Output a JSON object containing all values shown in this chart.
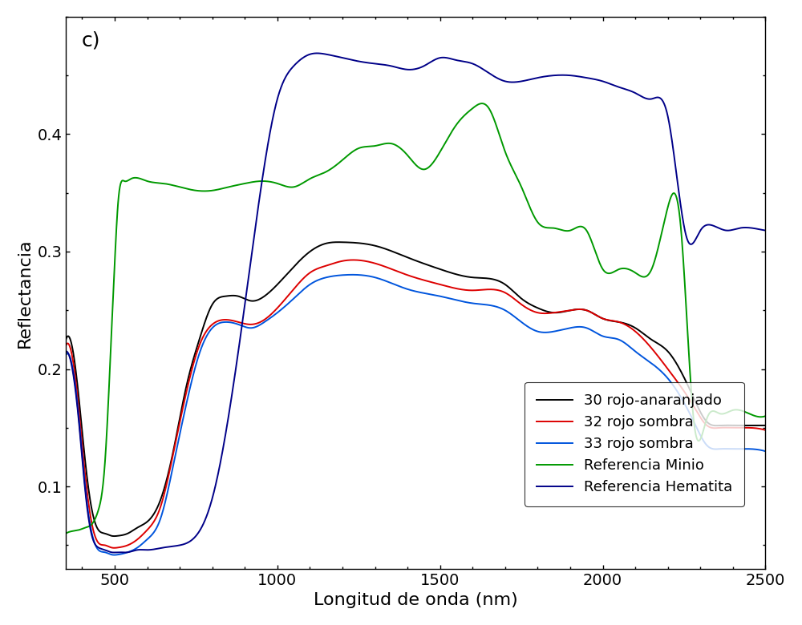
{
  "title": "c)",
  "xlabel": "Longitud de onda (nm)",
  "ylabel": "Reflectancia",
  "xlim": [
    350,
    2500
  ],
  "ylim": [
    0.03,
    0.5
  ],
  "legend_labels": [
    "30 rojo-anaranjado",
    "32 rojo sombra",
    "33 rojo sombra",
    "Referencia Minio",
    "Referencia Hematita"
  ],
  "colors": [
    "#000000",
    "#dd0000",
    "#0055dd",
    "#009900",
    "#000088"
  ],
  "linewidth": 1.4,
  "yticks": [
    0.1,
    0.2,
    0.3,
    0.4
  ],
  "xticks": [
    500,
    1000,
    1500,
    2000,
    2500
  ],
  "black_x": [
    350,
    370,
    390,
    410,
    430,
    450,
    470,
    490,
    510,
    540,
    570,
    600,
    640,
    680,
    720,
    760,
    800,
    840,
    880,
    920,
    960,
    1000,
    1050,
    1100,
    1150,
    1200,
    1300,
    1400,
    1500,
    1600,
    1700,
    1750,
    1800,
    1850,
    1900,
    1950,
    2000,
    2050,
    2100,
    2150,
    2200,
    2280,
    2320,
    2360,
    2400,
    2450,
    2500
  ],
  "black_y": [
    0.225,
    0.218,
    0.175,
    0.12,
    0.08,
    0.063,
    0.06,
    0.058,
    0.058,
    0.06,
    0.065,
    0.07,
    0.088,
    0.13,
    0.185,
    0.225,
    0.255,
    0.262,
    0.262,
    0.258,
    0.262,
    0.272,
    0.287,
    0.3,
    0.307,
    0.308,
    0.305,
    0.295,
    0.285,
    0.278,
    0.272,
    0.26,
    0.252,
    0.248,
    0.25,
    0.25,
    0.243,
    0.24,
    0.235,
    0.225,
    0.215,
    0.175,
    0.155,
    0.152,
    0.152,
    0.152,
    0.152
  ],
  "red_x": [
    350,
    370,
    390,
    410,
    430,
    450,
    470,
    490,
    510,
    540,
    570,
    600,
    640,
    680,
    720,
    760,
    800,
    840,
    880,
    920,
    960,
    1000,
    1050,
    1100,
    1150,
    1200,
    1300,
    1400,
    1500,
    1600,
    1700,
    1750,
    1800,
    1850,
    1900,
    1950,
    2000,
    2050,
    2100,
    2200,
    2280,
    2320,
    2360,
    2400,
    2450,
    2500
  ],
  "red_y": [
    0.22,
    0.21,
    0.165,
    0.108,
    0.068,
    0.052,
    0.05,
    0.048,
    0.048,
    0.05,
    0.055,
    0.063,
    0.082,
    0.128,
    0.18,
    0.22,
    0.238,
    0.242,
    0.24,
    0.238,
    0.242,
    0.252,
    0.268,
    0.282,
    0.288,
    0.292,
    0.29,
    0.28,
    0.272,
    0.267,
    0.265,
    0.255,
    0.248,
    0.248,
    0.25,
    0.25,
    0.243,
    0.24,
    0.232,
    0.2,
    0.168,
    0.152,
    0.15,
    0.15,
    0.15,
    0.148
  ],
  "blue_x": [
    350,
    370,
    390,
    410,
    430,
    450,
    470,
    490,
    510,
    540,
    570,
    600,
    640,
    680,
    720,
    760,
    800,
    840,
    880,
    920,
    960,
    1000,
    1050,
    1100,
    1150,
    1200,
    1300,
    1400,
    1500,
    1600,
    1700,
    1750,
    1800,
    1850,
    1900,
    1950,
    2000,
    2050,
    2100,
    2200,
    2280,
    2320,
    2360,
    2400,
    2450,
    2500
  ],
  "blue_y": [
    0.212,
    0.202,
    0.158,
    0.098,
    0.06,
    0.046,
    0.044,
    0.042,
    0.042,
    0.044,
    0.048,
    0.055,
    0.072,
    0.118,
    0.17,
    0.213,
    0.235,
    0.24,
    0.238,
    0.235,
    0.24,
    0.248,
    0.26,
    0.272,
    0.278,
    0.28,
    0.278,
    0.268,
    0.262,
    0.256,
    0.25,
    0.24,
    0.232,
    0.232,
    0.235,
    0.235,
    0.228,
    0.225,
    0.215,
    0.192,
    0.155,
    0.135,
    0.132,
    0.132,
    0.132,
    0.13
  ],
  "green_x": [
    350,
    370,
    390,
    410,
    430,
    450,
    470,
    490,
    500,
    510,
    530,
    550,
    600,
    650,
    700,
    750,
    800,
    850,
    900,
    950,
    1000,
    1050,
    1100,
    1150,
    1200,
    1250,
    1300,
    1350,
    1400,
    1450,
    1500,
    1550,
    1600,
    1650,
    1700,
    1750,
    1800,
    1850,
    1900,
    1950,
    2000,
    2050,
    2100,
    2150,
    2200,
    2240,
    2280,
    2320,
    2360,
    2400,
    2450,
    2500
  ],
  "green_y": [
    0.06,
    0.062,
    0.063,
    0.065,
    0.068,
    0.08,
    0.12,
    0.23,
    0.29,
    0.34,
    0.36,
    0.362,
    0.36,
    0.358,
    0.355,
    0.352,
    0.352,
    0.355,
    0.358,
    0.36,
    0.358,
    0.355,
    0.362,
    0.368,
    0.378,
    0.388,
    0.39,
    0.392,
    0.382,
    0.37,
    0.385,
    0.408,
    0.422,
    0.422,
    0.385,
    0.355,
    0.325,
    0.32,
    0.318,
    0.318,
    0.285,
    0.285,
    0.282,
    0.285,
    0.338,
    0.32,
    0.155,
    0.158,
    0.162,
    0.165,
    0.162,
    0.16
  ],
  "darkblue_x": [
    350,
    370,
    390,
    410,
    430,
    450,
    470,
    490,
    510,
    540,
    570,
    600,
    650,
    700,
    750,
    800,
    850,
    900,
    950,
    1000,
    1050,
    1100,
    1150,
    1200,
    1250,
    1300,
    1350,
    1400,
    1450,
    1500,
    1550,
    1600,
    1650,
    1700,
    1750,
    1800,
    1850,
    1900,
    1950,
    2000,
    2050,
    2100,
    2150,
    2200,
    2260,
    2300,
    2340,
    2380,
    2420,
    2460,
    2500
  ],
  "darkblue_y": [
    0.215,
    0.2,
    0.155,
    0.095,
    0.058,
    0.048,
    0.046,
    0.044,
    0.044,
    0.044,
    0.046,
    0.046,
    0.048,
    0.05,
    0.058,
    0.09,
    0.16,
    0.255,
    0.355,
    0.43,
    0.458,
    0.468,
    0.468,
    0.465,
    0.462,
    0.46,
    0.458,
    0.455,
    0.458,
    0.465,
    0.463,
    0.46,
    0.452,
    0.445,
    0.445,
    0.448,
    0.45,
    0.45,
    0.448,
    0.445,
    0.44,
    0.435,
    0.43,
    0.415,
    0.31,
    0.318,
    0.322,
    0.318,
    0.32,
    0.32,
    0.318
  ]
}
